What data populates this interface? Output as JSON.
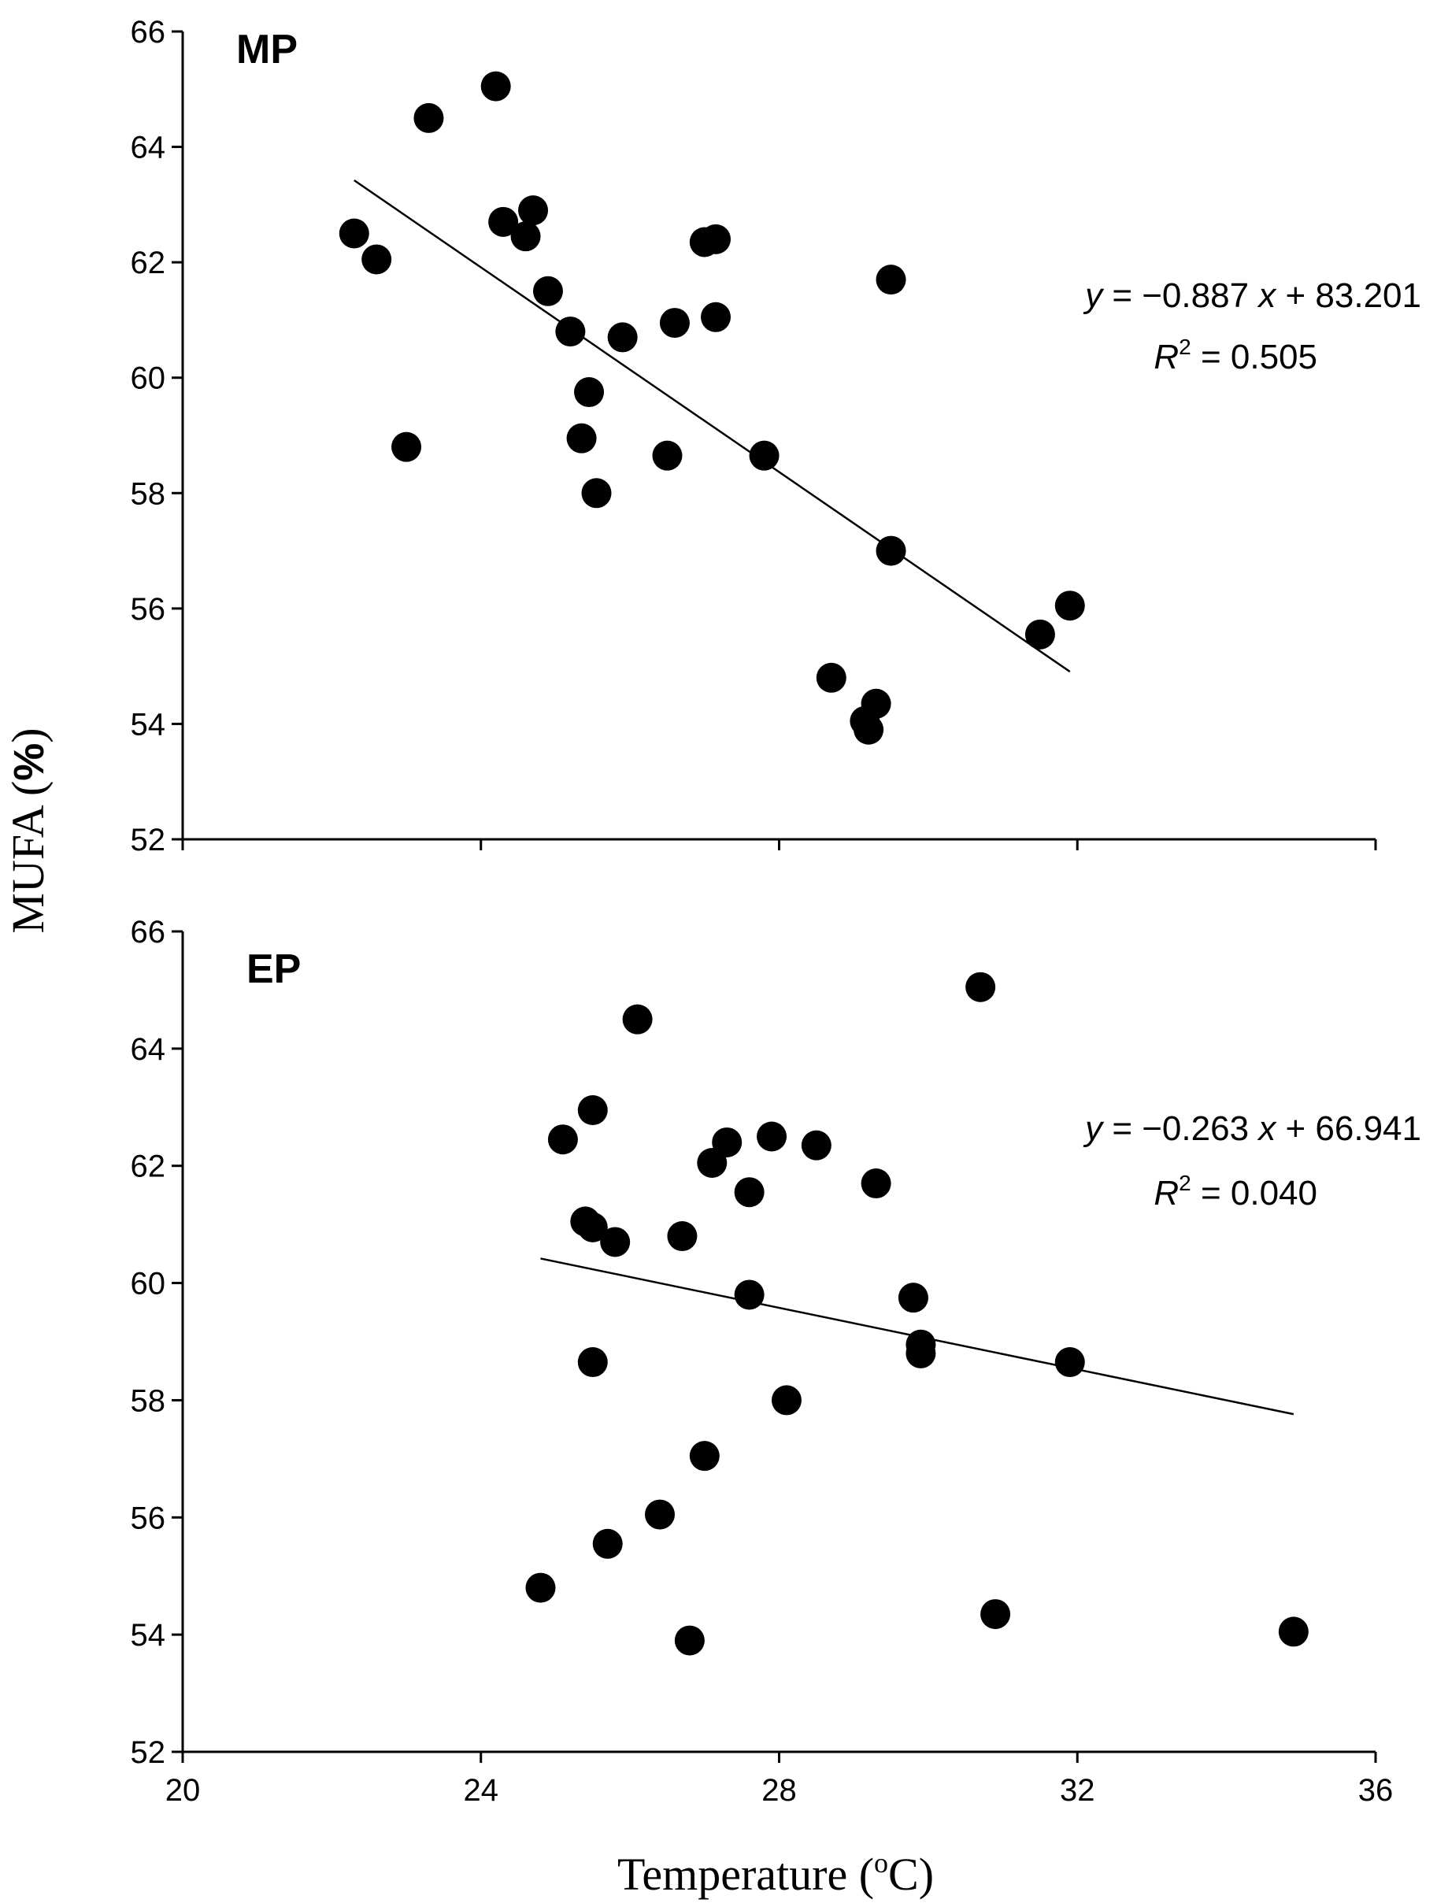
{
  "chart_data": [
    {
      "type": "scatter",
      "panel_label": "MP",
      "ylabel_main": "MUFA (",
      "ylabel_unit": "%",
      "ylabel_close": ")",
      "xlim": [
        20,
        36
      ],
      "ylim": [
        52,
        66
      ],
      "x_ticks": [
        "20",
        "24",
        "28",
        "32",
        "36"
      ],
      "y_ticks": [
        "52",
        "54",
        "56",
        "58",
        "60",
        "62",
        "64",
        "66"
      ],
      "x_tick_labels_shown": false,
      "equation": {
        "y": "y",
        "equals": " = −0.887 ",
        "x": "x",
        "rest": " + 83.201"
      },
      "r2": {
        "r": "R",
        "sup": "2",
        "rest": " = 0.505"
      },
      "trendline": {
        "slope": -0.887,
        "intercept": 83.201,
        "x_start": 22.3,
        "x_end": 31.9
      },
      "points": [
        {
          "x": 22.3,
          "y": 62.5
        },
        {
          "x": 22.6,
          "y": 62.05
        },
        {
          "x": 23.0,
          "y": 58.8
        },
        {
          "x": 23.3,
          "y": 64.5
        },
        {
          "x": 24.2,
          "y": 65.05
        },
        {
          "x": 24.3,
          "y": 62.7
        },
        {
          "x": 24.6,
          "y": 62.45
        },
        {
          "x": 24.7,
          "y": 62.9
        },
        {
          "x": 24.9,
          "y": 61.5
        },
        {
          "x": 25.2,
          "y": 60.8
        },
        {
          "x": 25.35,
          "y": 58.95
        },
        {
          "x": 25.45,
          "y": 59.75
        },
        {
          "x": 25.55,
          "y": 58.0
        },
        {
          "x": 25.9,
          "y": 60.7
        },
        {
          "x": 26.5,
          "y": 58.65
        },
        {
          "x": 26.6,
          "y": 60.95
        },
        {
          "x": 27.0,
          "y": 62.35
        },
        {
          "x": 27.15,
          "y": 62.4
        },
        {
          "x": 27.15,
          "y": 61.05
        },
        {
          "x": 27.8,
          "y": 58.65
        },
        {
          "x": 28.7,
          "y": 54.8
        },
        {
          "x": 29.15,
          "y": 54.05
        },
        {
          "x": 29.2,
          "y": 53.9
        },
        {
          "x": 29.3,
          "y": 54.35
        },
        {
          "x": 29.5,
          "y": 57.0
        },
        {
          "x": 29.5,
          "y": 61.7
        },
        {
          "x": 31.5,
          "y": 55.55
        },
        {
          "x": 31.9,
          "y": 56.05
        }
      ]
    },
    {
      "type": "scatter",
      "panel_label": "EP",
      "xlabel_main": "Temperature (",
      "xlabel_sup": "o",
      "xlabel_unit": "C)",
      "xlim": [
        20,
        36
      ],
      "ylim": [
        52,
        66
      ],
      "x_ticks": [
        "20",
        "24",
        "28",
        "32",
        "36"
      ],
      "y_ticks": [
        "52",
        "54",
        "56",
        "58",
        "60",
        "62",
        "64",
        "66"
      ],
      "x_tick_labels_shown": true,
      "equation": {
        "y": "y",
        "equals": " = −0.263 ",
        "x": "x",
        "rest": " + 66.941"
      },
      "r2": {
        "r": "R",
        "sup": "2",
        "rest": " = 0.040"
      },
      "trendline": {
        "slope": -0.263,
        "intercept": 66.941,
        "x_start": 24.8,
        "x_end": 34.9
      },
      "points": [
        {
          "x": 24.8,
          "y": 54.8
        },
        {
          "x": 25.1,
          "y": 62.45
        },
        {
          "x": 25.4,
          "y": 61.05
        },
        {
          "x": 25.5,
          "y": 60.95
        },
        {
          "x": 25.5,
          "y": 62.95
        },
        {
          "x": 25.5,
          "y": 58.65
        },
        {
          "x": 25.7,
          "y": 55.55
        },
        {
          "x": 25.8,
          "y": 60.7
        },
        {
          "x": 26.1,
          "y": 64.5
        },
        {
          "x": 26.4,
          "y": 56.05
        },
        {
          "x": 26.7,
          "y": 60.8
        },
        {
          "x": 26.8,
          "y": 53.9
        },
        {
          "x": 27.0,
          "y": 57.05
        },
        {
          "x": 27.1,
          "y": 62.05
        },
        {
          "x": 27.3,
          "y": 62.4
        },
        {
          "x": 27.6,
          "y": 61.55
        },
        {
          "x": 27.6,
          "y": 59.8
        },
        {
          "x": 27.9,
          "y": 62.5
        },
        {
          "x": 28.1,
          "y": 58.0
        },
        {
          "x": 28.5,
          "y": 62.35
        },
        {
          "x": 29.3,
          "y": 61.7
        },
        {
          "x": 29.8,
          "y": 59.75
        },
        {
          "x": 29.9,
          "y": 58.95
        },
        {
          "x": 29.9,
          "y": 58.8
        },
        {
          "x": 30.7,
          "y": 65.05
        },
        {
          "x": 30.9,
          "y": 54.35
        },
        {
          "x": 31.9,
          "y": 58.65
        },
        {
          "x": 34.9,
          "y": 54.05
        }
      ]
    }
  ]
}
